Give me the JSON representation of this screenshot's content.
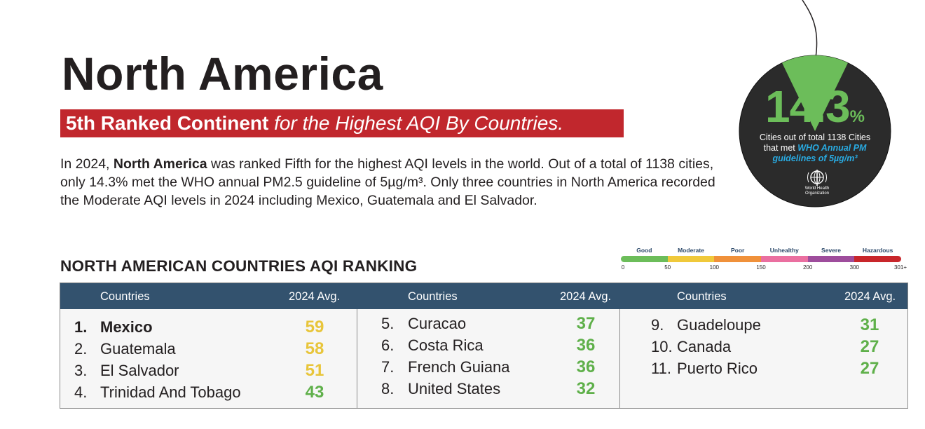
{
  "title": "North America",
  "subtitle": {
    "strong": "5th Ranked Continent",
    "em": " for the Highest AQI By Countries."
  },
  "intro": {
    "p1": "In 2024, ",
    "b1": "North America",
    "p2": " was ranked Fifth for the highest AQI levels in the world. Out of a total of ",
    "p3": "1138 cities",
    "p4": ", only ",
    "p5": "14.3%",
    "p6": " met the WHO annual ",
    "p7": "PM2.5 guideline of 5µg/m³",
    "p8": ". Only three countries in North America recorded the Moderate AQI levels in 2024 including Mexico, Guatemala and El Salvador."
  },
  "badge": {
    "value": "14.3",
    "unit": "%",
    "share_met": 0.143,
    "line1": "Cities out of total 1138 Cities",
    "line2_plain": "that met ",
    "line2_highlight": "WHO Annual PM",
    "line3_highlight": "guidelines of 5µg/m³",
    "logo_text": "World Health Organization",
    "colors": {
      "disc": "#2b2b2b",
      "wedge": "#6cbd5a",
      "highlight": "#29abe2"
    }
  },
  "scale": {
    "categories": [
      {
        "label": "Good",
        "color": "#6cbd5a"
      },
      {
        "label": "Moderate",
        "color": "#f0c93b"
      },
      {
        "label": "Poor",
        "color": "#f0913a"
      },
      {
        "label": "Unhealthy",
        "color": "#ea6fa0"
      },
      {
        "label": "Severe",
        "color": "#9e4d9c"
      },
      {
        "label": "Hazardous",
        "color": "#c8262b"
      }
    ],
    "ticks": [
      "0",
      "50",
      "100",
      "150",
      "200",
      "300",
      "301+"
    ]
  },
  "section_title": "NORTH AMERICAN COUNTRIES AQI RANKING",
  "table": {
    "header_countries": "Countries",
    "header_avg": "2024 Avg.",
    "rows": [
      {
        "num": "1.",
        "name": "Mexico",
        "value": "59",
        "color": "#e8c53a"
      },
      {
        "num": "2.",
        "name": "Guatemala",
        "value": "58",
        "color": "#e8c53a"
      },
      {
        "num": "3.",
        "name": "El Salvador",
        "value": "51",
        "color": "#e8c53a"
      },
      {
        "num": "4.",
        "name": "Trinidad And Tobago",
        "value": "43",
        "color": "#5fb04a"
      },
      {
        "num": "5.",
        "name": "Curacao",
        "value": "37",
        "color": "#5fb04a"
      },
      {
        "num": "6.",
        "name": "Costa Rica",
        "value": "36",
        "color": "#5fb04a"
      },
      {
        "num": "7.",
        "name": "French Guiana",
        "value": "36",
        "color": "#5fb04a"
      },
      {
        "num": "8.",
        "name": "United States",
        "value": "32",
        "color": "#5fb04a"
      },
      {
        "num": "9.",
        "name": "Guadeloupe",
        "value": "31",
        "color": "#5fb04a"
      },
      {
        "num": "10.",
        "name": "Canada",
        "value": "27",
        "color": "#5fb04a"
      },
      {
        "num": "11.",
        "name": "Puerto Rico",
        "value": "27",
        "color": "#5fb04a"
      }
    ]
  }
}
